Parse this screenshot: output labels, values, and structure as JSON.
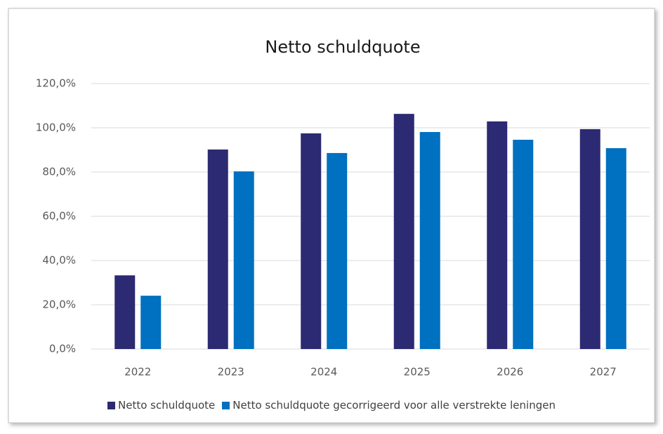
{
  "chart_data": {
    "type": "bar",
    "title": "Netto schuldquote",
    "categories": [
      "2022",
      "2023",
      "2024",
      "2025",
      "2026",
      "2027"
    ],
    "series": [
      {
        "name": "Netto schuldquote",
        "color": "#2c2a72",
        "values": [
          33.3,
          90.2,
          97.5,
          106.3,
          102.9,
          99.4
        ]
      },
      {
        "name": "Netto schuldquote gecorrigeerd voor alle verstrekte leningen",
        "color": "#0070c0",
        "values": [
          24.1,
          80.3,
          88.6,
          98.1,
          94.6,
          90.8
        ]
      }
    ],
    "ylim": [
      0,
      120
    ],
    "yticks": [
      {
        "value": 0,
        "label": "0,0%"
      },
      {
        "value": 20,
        "label": "20,0%"
      },
      {
        "value": 40,
        "label": "40,0%"
      },
      {
        "value": 60,
        "label": "60,0%"
      },
      {
        "value": 80,
        "label": "80,0%"
      },
      {
        "value": 100,
        "label": "100,0%"
      },
      {
        "value": 120,
        "label": "120,0%"
      }
    ],
    "grid": true,
    "legend": "bottom"
  }
}
